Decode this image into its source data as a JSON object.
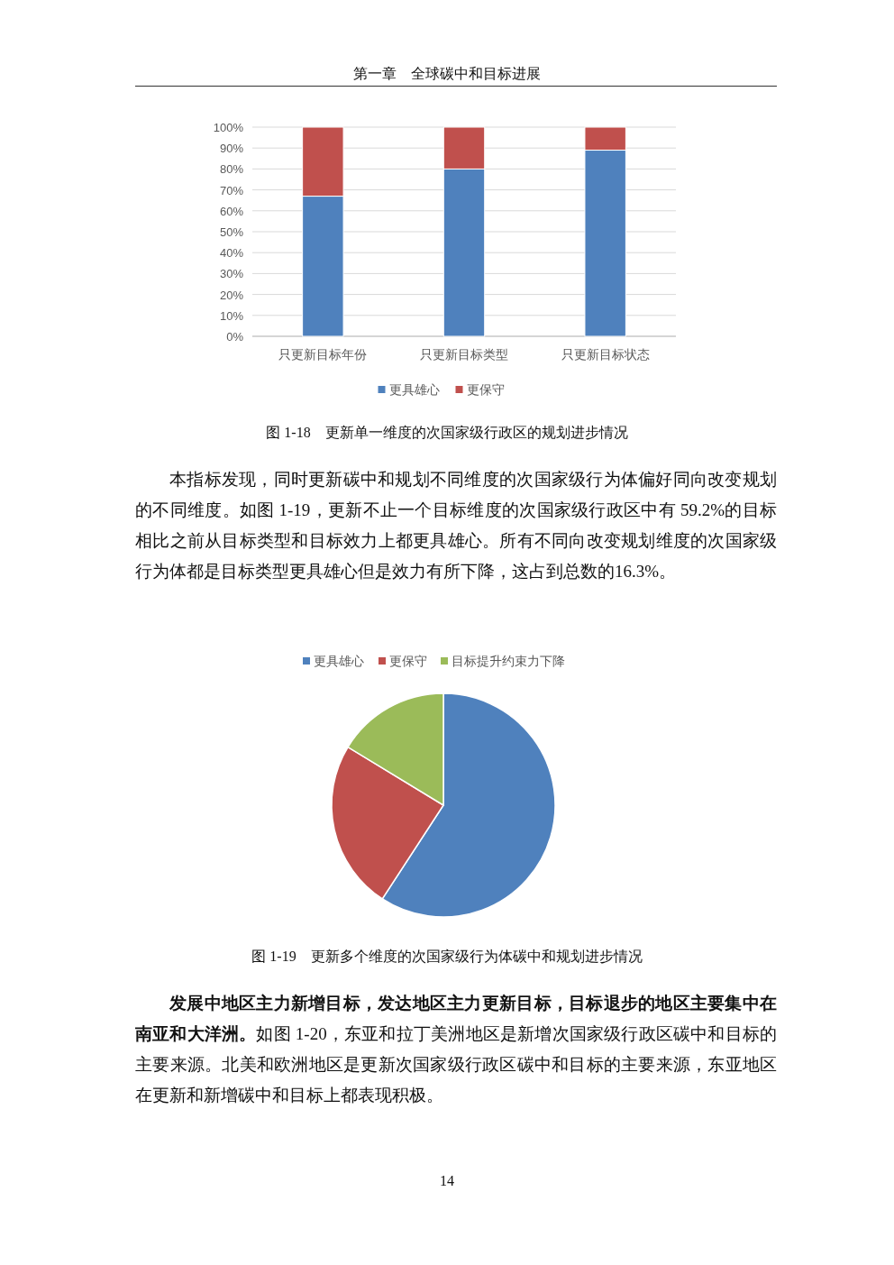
{
  "chart_data": [
    {
      "type": "bar",
      "stacked": true,
      "title": "图 1-18　更新单一维度的次国家级行政区的规划进步情况",
      "categories": [
        "只更新目标年份",
        "只更新目标类型",
        "只更新目标状态"
      ],
      "series": [
        {
          "name": "更具雄心",
          "color": "#4f81bd",
          "values": [
            67,
            80,
            89
          ]
        },
        {
          "name": "更保守",
          "color": "#c0504d",
          "values": [
            33,
            20,
            11
          ]
        }
      ],
      "ylim": [
        0,
        100
      ],
      "yticks": [
        {
          "value": 0,
          "label": "0%"
        },
        {
          "value": 10,
          "label": "10%"
        },
        {
          "value": 20,
          "label": "20%"
        },
        {
          "value": 30,
          "label": "30%"
        },
        {
          "value": 40,
          "label": "40%"
        },
        {
          "value": 50,
          "label": "50%"
        },
        {
          "value": 60,
          "label": "60%"
        },
        {
          "value": 70,
          "label": "70%"
        },
        {
          "value": 80,
          "label": "80%"
        },
        {
          "value": 90,
          "label": "90%"
        },
        {
          "value": 100,
          "label": "100%"
        }
      ],
      "grid": "y",
      "legend": "bottom",
      "annotations": [
        "第一章　全球碳中和目标进展",
        "本指标发现，同时更新碳中和规划不同维度的次国家级行为体偏好同向改变规划的不同维度。如图 1-19，更新不止一个目标维度的次国家级行政区中有 59.2%的目标相比之前从目标类型和目标效力上都更具雄心。所有不同向改变规划维度的次国家级行为体都是目标类型更具雄心但是效力有所下降，这占到总数的16.3%。"
      ]
    },
    {
      "type": "pie",
      "title": "图 1-19　更新多个维度的次国家级行为体碳中和规划进步情况",
      "categories": [
        "更具雄心",
        "更保守",
        "目标提升约束力下降"
      ],
      "values": [
        59.2,
        24.5,
        16.3
      ],
      "colors": [
        "#4f81bd",
        "#c0504d",
        "#9bbb59"
      ],
      "legend": "top",
      "annotations": [
        "发展中地区主力新增目标，发达地区主力更新目标，目标退步的地区主要集中在南亚和大洋洲。",
        "如图 1-20，东亚和拉丁美洲地区是新增次国家级行政区碳中和目标的主要来源。北美和欧洲地区是更新次国家级行政区碳中和目标的主要来源，东亚地区在更新和新增碳中和目标上都表现积极。",
        "14"
      ]
    }
  ]
}
